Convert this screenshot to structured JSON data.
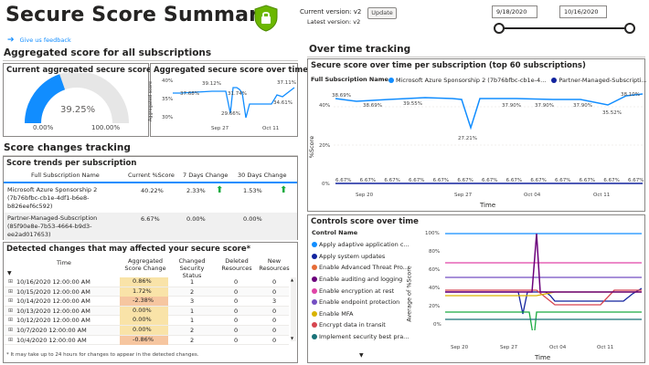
{
  "header": {
    "title": "Secure Score Summary",
    "current_version_label": "Current version: v2",
    "latest_version_label": "Latest version: v2",
    "update_label": "Update",
    "date_start": "9/18/2020",
    "date_end": "10/16/2020",
    "feedback_label": "Give us feedback"
  },
  "aggregated": {
    "section_title": "Aggregated score for all subscriptions",
    "current_title": "Current aggregated secure score",
    "gauge_value": "39.25%",
    "gauge_fraction": 0.3925,
    "gauge_min": "0.00%",
    "gauge_max": "100.00%",
    "overtime_title": "Aggregated secure score over time",
    "overtime_ylabel": "Aggregated score",
    "overtime_labels": [
      "37.68%",
      "39.12%",
      "31.74%",
      "29.66%",
      "37.11%",
      "34.61%"
    ],
    "overtime_yticks": [
      "40%",
      "35%",
      "30%"
    ],
    "overtime_xticks": [
      "Sep 27",
      "Oct 11"
    ]
  },
  "changes": {
    "section_title": "Score changes tracking",
    "trends_title": "Score trends per subscription",
    "col_name": "Full Subscription Name",
    "col_current": "Current %Score",
    "col_7d": "7 Days Change",
    "col_30d": "30 Days Change",
    "rows": [
      {
        "name1": "Microsoft Azure Sponsorship 2",
        "name2": "(7b76bfbc-cb1e-4df1-b6e8-",
        "name3": "b826eef6c592)",
        "current": "40.22%",
        "d7": "2.33%",
        "d30": "1.53%"
      },
      {
        "name1": "Partner-Managed-Subscription",
        "name2": "(85f90e8e-7b53-4664-b9d3-",
        "name3": "ee2ad017653)",
        "current": "6.67%",
        "d7": "0.00%",
        "d30": "0.00%"
      }
    ]
  },
  "detected": {
    "title": "Detected changes that may affected your secure score*",
    "col_time": "Time",
    "col_agg": "Aggregated Score Change",
    "col_status": "Changed Security Status",
    "col_deleted": "Deleted Resources",
    "col_new": "New Resources",
    "rows": [
      {
        "time": "10/16/2020 12:00:00 AM",
        "agg": "0.86%",
        "status": "1",
        "deleted": "0",
        "new": "0"
      },
      {
        "time": "10/15/2020 12:00:00 AM",
        "agg": "1.72%",
        "status": "2",
        "deleted": "0",
        "new": "0"
      },
      {
        "time": "10/14/2020 12:00:00 AM",
        "agg": "-2.38%",
        "status": "3",
        "deleted": "0",
        "new": "3"
      },
      {
        "time": "10/13/2020 12:00:00 AM",
        "agg": "0.00%",
        "status": "1",
        "deleted": "0",
        "new": "0"
      },
      {
        "time": "10/12/2020 12:00:00 AM",
        "agg": "0.00%",
        "status": "1",
        "deleted": "0",
        "new": "0"
      },
      {
        "time": "10/7/2020 12:00:00 AM",
        "agg": "0.00%",
        "status": "2",
        "deleted": "0",
        "new": "0"
      },
      {
        "time": "10/4/2020 12:00:00 AM",
        "agg": "-0.86%",
        "status": "2",
        "deleted": "0",
        "new": "0"
      }
    ],
    "footnote": "* It may take up to 24 hours for changes to appear in the detected changes."
  },
  "overtime": {
    "section_title": "Over time tracking",
    "sub_title": "Secure score over time per subscription (top 60 subscriptions)",
    "legend_label": "Full Subscription Name",
    "legend_items": [
      {
        "name": "Microsoft Azure Sponsorship 2 (7b76bfbc-cb1e-4...",
        "color": "#118dff"
      },
      {
        "name": "Partner-Managed-Subscripti...",
        "color": "#12239e"
      }
    ],
    "ylabel": "%Score",
    "xlabel": "Time",
    "xticks": [
      "Sep 20",
      "Sep 27",
      "Oct 04",
      "Oct 11"
    ],
    "yticks": [
      "40%",
      "20%",
      "0%"
    ],
    "top_labels": [
      "38.69%",
      "39.55%",
      "27.21%",
      "37.90%",
      "37.90%",
      "37.90%",
      "35.52%",
      "38.10%"
    ],
    "top_labels_left": [
      "38.69%",
      "38.69%"
    ],
    "bottom_labels": [
      "6.67%",
      "6.67%",
      "6.67%",
      "6.67%",
      "6.67%",
      "6.67%",
      "6.67%",
      "6.67%",
      "6.67%",
      "6.67%",
      "6.67%",
      "6.67%",
      "6.67%"
    ]
  },
  "controls": {
    "title": "Controls score over time",
    "legend_label": "Control Name",
    "ylabel": "Average of %Score",
    "xlabel": "Time",
    "xticks": [
      "Sep 20",
      "Sep 27",
      "Oct 04",
      "Oct 11"
    ],
    "yticks": [
      "100%",
      "80%",
      "60%",
      "40%",
      "20%",
      "0%"
    ],
    "legend_items": [
      {
        "name": "Apply adaptive application c...",
        "color": "#118dff"
      },
      {
        "name": "Apply system updates",
        "color": "#12239e"
      },
      {
        "name": "Enable Advanced Threat Pro...",
        "color": "#e66c37"
      },
      {
        "name": "Enable auditing and logging",
        "color": "#6b007b"
      },
      {
        "name": "Enable encryption at rest",
        "color": "#e044a7"
      },
      {
        "name": "Enable endpoint protection",
        "color": "#744ec2"
      },
      {
        "name": "Enable MFA",
        "color": "#d9b300"
      },
      {
        "name": "Encrypt data in transit",
        "color": "#d64550"
      },
      {
        "name": "Implement security best pra...",
        "color": "#197278"
      }
    ]
  }
}
